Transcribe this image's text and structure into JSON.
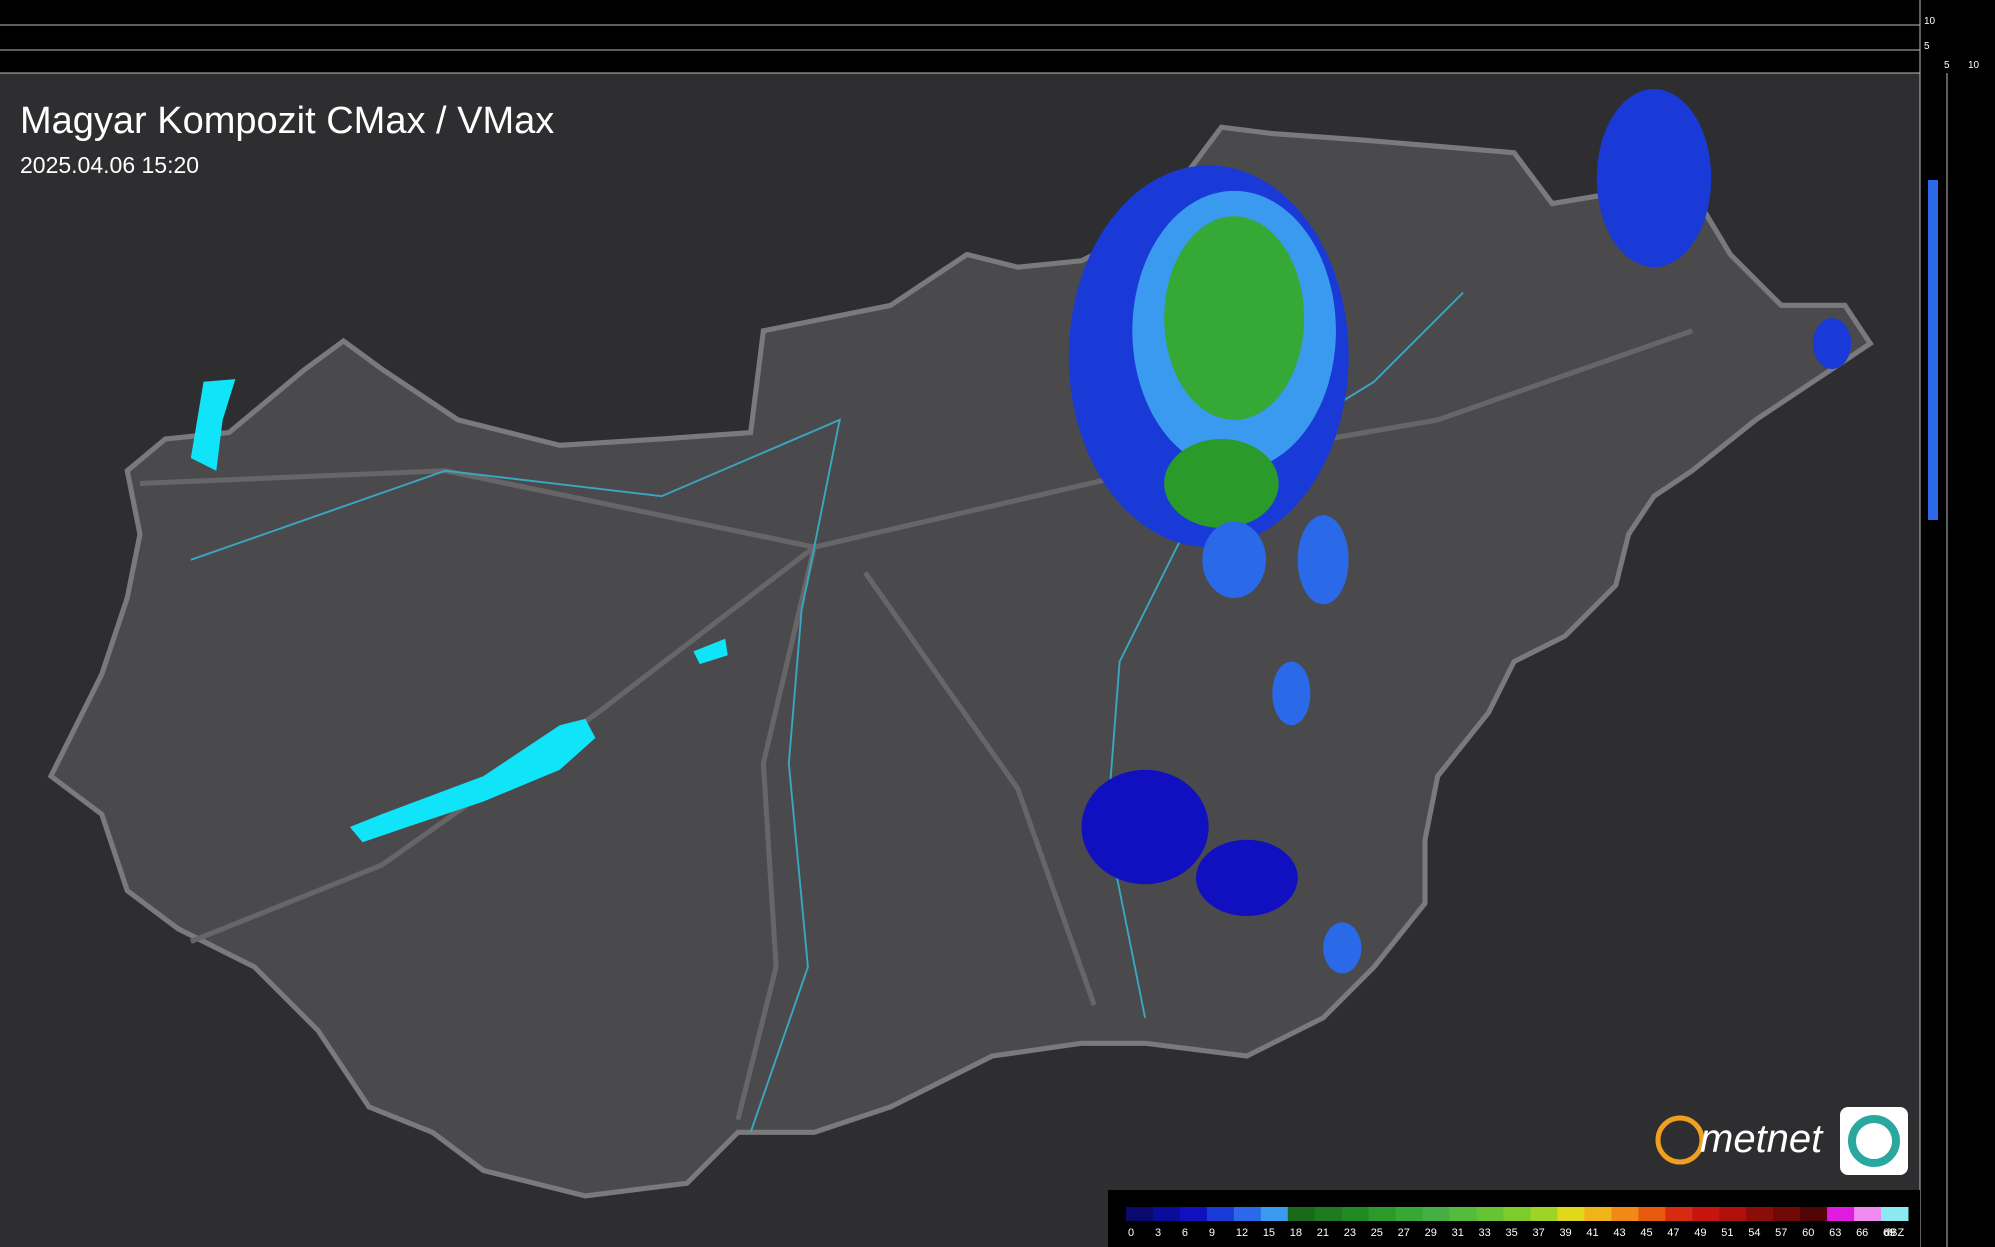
{
  "header": {
    "title": "Magyar Kompozit CMax / VMax",
    "timestamp": "2025.04.06 15:20"
  },
  "side_scale": {
    "top_labels": [
      "10",
      "5"
    ],
    "right_labels": [
      "5",
      "10"
    ]
  },
  "legend": {
    "unit": "dBZ",
    "labels": [
      0,
      3,
      6,
      9,
      12,
      15,
      18,
      21,
      23,
      25,
      27,
      29,
      31,
      33,
      35,
      37,
      39,
      41,
      43,
      45,
      47,
      49,
      51,
      54,
      57,
      60,
      63,
      66,
      69
    ],
    "colors": [
      "#0a0a6e",
      "#0c0c9a",
      "#1010c0",
      "#1a3ad8",
      "#2a6ae8",
      "#3a9af0",
      "#1a6a1a",
      "#1e7a1e",
      "#228a22",
      "#2a9a2a",
      "#36a836",
      "#44b044",
      "#54bc3a",
      "#66c434",
      "#7ccc2c",
      "#a0d424",
      "#e0d81a",
      "#f0b418",
      "#f08a14",
      "#e85a10",
      "#d82a10",
      "#c8140e",
      "#b0100c",
      "#8c0c0a",
      "#700808",
      "#500606",
      "#e01ae0",
      "#f08af0",
      "#8aeaf0"
    ]
  },
  "logo": {
    "text": "metnet"
  }
}
